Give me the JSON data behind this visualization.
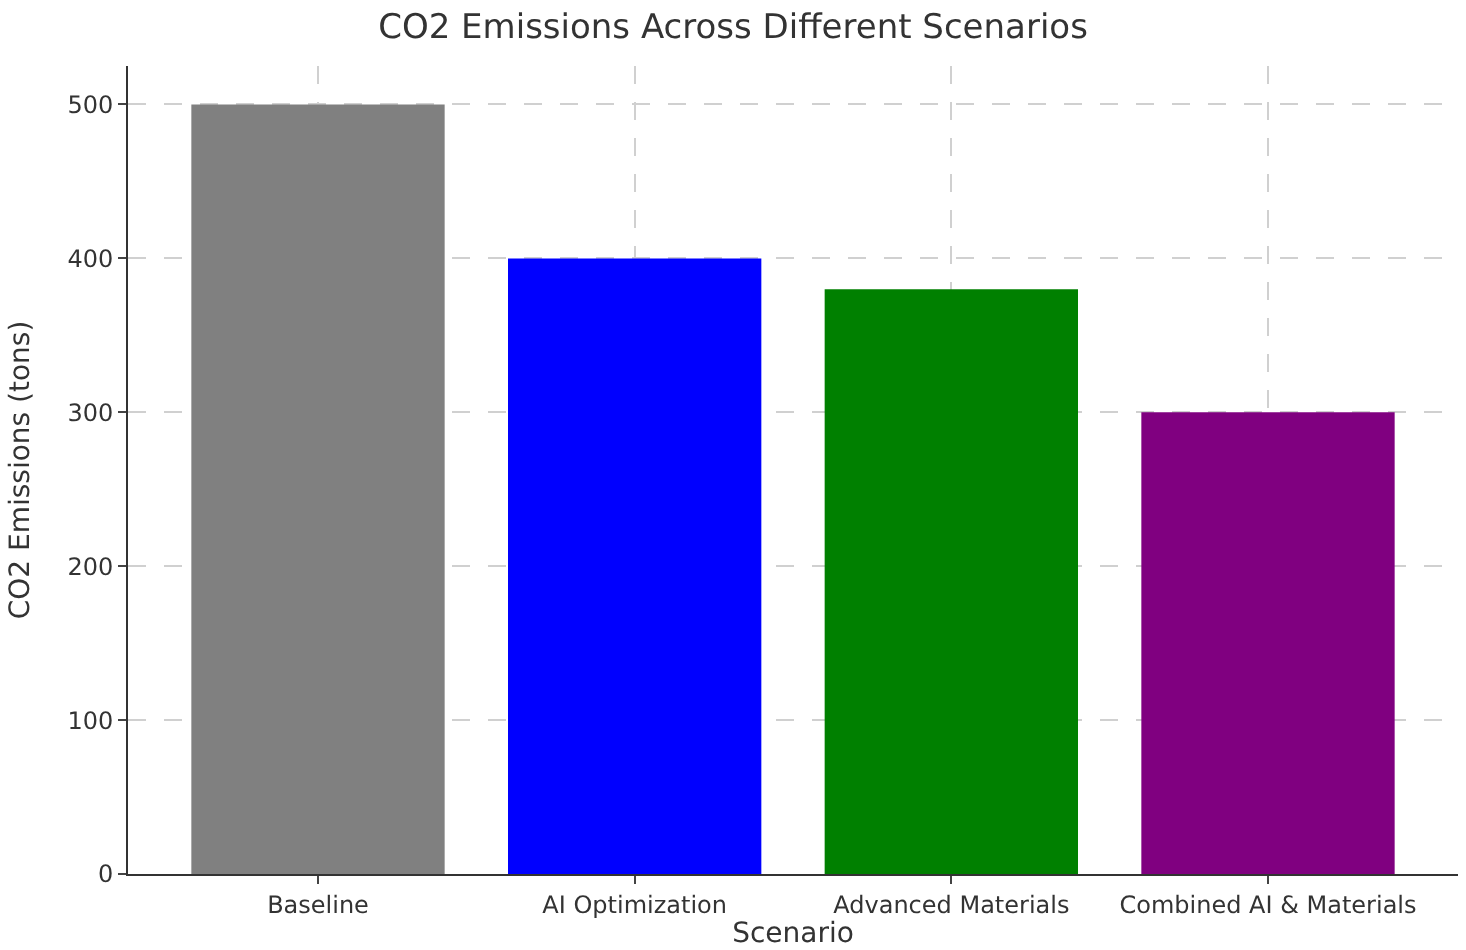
{
  "chart_data": {
    "type": "bar",
    "title": "CO2 Emissions Across Different Scenarios",
    "xlabel": "Scenario",
    "ylabel": "CO2 Emissions (tons)",
    "categories": [
      "Baseline",
      "AI Optimization",
      "Advanced Materials",
      "Combined AI & Materials"
    ],
    "values": [
      500,
      400,
      380,
      300
    ],
    "colors": [
      "#808080",
      "#0000ff",
      "#008000",
      "#800080"
    ],
    "ylim": [
      0,
      525
    ],
    "yticks": [
      0,
      100,
      200,
      300,
      400,
      500
    ],
    "grid": true
  }
}
